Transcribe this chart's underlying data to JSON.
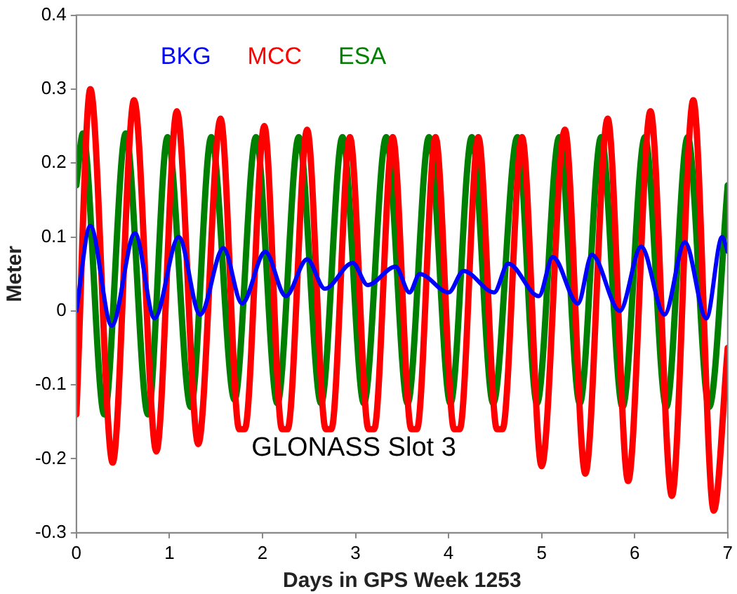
{
  "chart_data": {
    "type": "line",
    "xlabel": "Days in GPS Week 1253",
    "ylabel": "Meter",
    "xlim": [
      0,
      7
    ],
    "xticks": [
      0,
      1,
      2,
      3,
      4,
      5,
      6,
      7
    ],
    "ylim": [
      -0.3,
      0.4
    ],
    "yticks": [
      -0.3,
      -0.2,
      -0.1,
      0,
      0.1,
      0.2,
      0.3,
      0.4
    ],
    "grid": false,
    "legend": "top left",
    "marker": "none",
    "line_style": "solid",
    "annotations": [
      "GLONASS Slot 3"
    ],
    "series": [
      {
        "name": "BKG",
        "color": "#0000ff",
        "x": [
          0,
          0.15,
          0.38,
          0.63,
          0.84,
          1.1,
          1.33,
          1.58,
          1.78,
          2.03,
          2.25,
          2.48,
          2.67,
          2.97,
          3.13,
          3.43,
          3.58,
          3.69,
          4.0,
          4.16,
          4.49,
          4.64,
          4.97,
          5.12,
          5.39,
          5.54,
          5.84,
          6.07,
          6.32,
          6.54,
          6.77,
          6.94,
          7
        ],
        "values": [
          0.0,
          0.115,
          -0.02,
          0.105,
          -0.01,
          0.1,
          -0.005,
          0.085,
          0.01,
          0.08,
          0.02,
          0.07,
          0.03,
          0.065,
          0.035,
          0.06,
          0.025,
          0.05,
          0.025,
          0.054,
          0.025,
          0.064,
          0.02,
          0.073,
          0.01,
          0.076,
          0.0,
          0.087,
          -0.005,
          0.093,
          -0.01,
          0.1,
          0.08
        ]
      },
      {
        "name": "MCC",
        "color": "#ff0000",
        "x": [
          0,
          0.15,
          0.39,
          0.62,
          0.86,
          1.08,
          1.31,
          1.55,
          1.75,
          1.81,
          2.02,
          2.21,
          2.27,
          2.48,
          2.68,
          2.74,
          2.94,
          3.14,
          3.2,
          3.4,
          3.6,
          3.66,
          3.86,
          4.06,
          4.12,
          4.32,
          4.52,
          4.58,
          4.79,
          5.0,
          5.25,
          5.47,
          5.71,
          5.93,
          6.17,
          6.4,
          6.63,
          6.85,
          7
        ],
        "values": [
          -0.14,
          0.3,
          -0.205,
          0.285,
          -0.19,
          0.27,
          -0.18,
          0.26,
          -0.16,
          -0.16,
          0.25,
          -0.16,
          -0.16,
          0.245,
          -0.16,
          -0.16,
          0.235,
          -0.16,
          -0.16,
          0.235,
          -0.16,
          -0.16,
          0.235,
          -0.16,
          -0.16,
          0.235,
          -0.16,
          -0.16,
          0.235,
          -0.21,
          0.245,
          -0.22,
          0.26,
          -0.23,
          0.27,
          -0.25,
          0.285,
          -0.27,
          -0.05
        ]
      },
      {
        "name": "ESA",
        "color": "#008000",
        "x": [
          0,
          0.07,
          0.3,
          0.53,
          0.77,
          0.98,
          1.23,
          1.45,
          1.7,
          1.93,
          2.16,
          2.39,
          2.63,
          2.86,
          3.09,
          3.33,
          3.56,
          3.79,
          4.02,
          4.25,
          4.48,
          4.74,
          4.95,
          5.19,
          5.41,
          5.64,
          5.87,
          6.11,
          6.34,
          6.57,
          6.8,
          7
        ],
        "values": [
          0.17,
          0.24,
          -0.14,
          0.24,
          -0.14,
          0.235,
          -0.13,
          0.235,
          -0.12,
          0.235,
          -0.125,
          0.235,
          -0.125,
          0.235,
          -0.125,
          0.235,
          -0.125,
          0.235,
          -0.125,
          0.235,
          -0.125,
          0.235,
          -0.125,
          0.235,
          -0.125,
          0.235,
          -0.13,
          0.235,
          -0.13,
          0.235,
          -0.13,
          0.17
        ]
      }
    ]
  }
}
